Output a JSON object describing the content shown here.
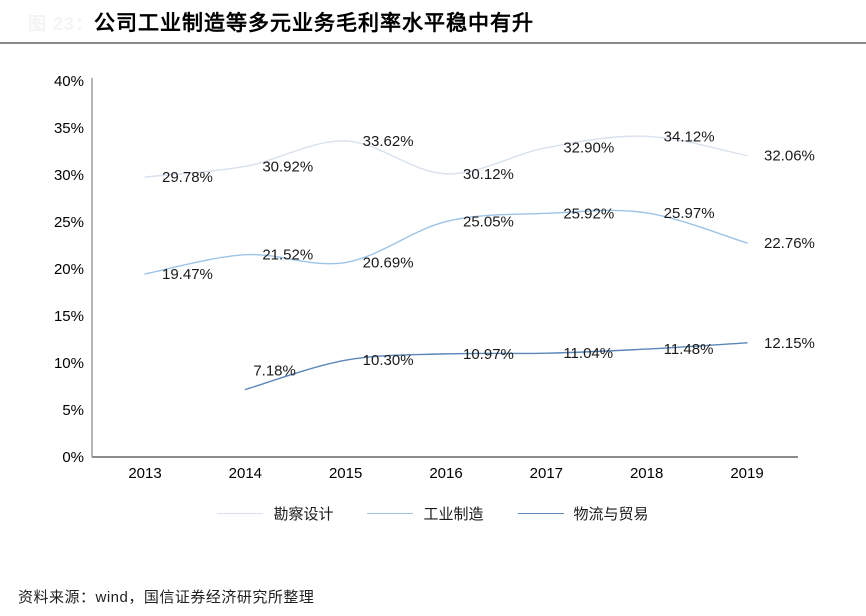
{
  "figure_label": "图 23：",
  "title": "公司工业制造等多元业务毛利率水平稳中有升",
  "source_note": "资料来源：wind，国信证券经济研究所整理",
  "colors": {
    "series1": "#d9e1ed",
    "series2": "#9dc3e6",
    "series3": "#5b87b8",
    "axis": "#9b9b9b",
    "title_underline": "#8a8a8a",
    "label_text": "#1a1a1a"
  },
  "chart_data": {
    "type": "line",
    "title": "公司工业制造等多元业务毛利率水平稳中有升",
    "x": [
      "2013",
      "2014",
      "2015",
      "2016",
      "2017",
      "2018",
      "2019"
    ],
    "series": [
      {
        "name": "勘察设计",
        "color": "#d9e1ed",
        "values": [
          29.78,
          30.92,
          33.62,
          30.12,
          32.9,
          34.12,
          32.06
        ],
        "labels": [
          "29.78%",
          "30.92%",
          "33.62%",
          "30.12%",
          "32.90%",
          "34.12%",
          "32.06%"
        ]
      },
      {
        "name": "工业制造",
        "color": "#9dc3e6",
        "values": [
          19.47,
          21.52,
          20.69,
          25.05,
          25.92,
          25.97,
          22.76
        ],
        "labels": [
          "19.47%",
          "21.52%",
          "20.69%",
          "25.05%",
          "25.92%",
          "25.97%",
          "22.76%"
        ]
      },
      {
        "name": "物流与贸易",
        "color": "#5b87b8",
        "values": [
          null,
          7.18,
          10.3,
          10.97,
          11.04,
          11.48,
          12.15
        ],
        "labels": [
          null,
          "7.18%",
          "10.30%",
          "10.97%",
          "11.04%",
          "11.48%",
          "12.15%"
        ]
      }
    ],
    "ylim": [
      0,
      40
    ],
    "ytick_step": 5,
    "ytick_labels": [
      "0%",
      "5%",
      "10%",
      "15%",
      "20%",
      "25%",
      "30%",
      "35%",
      "40%"
    ],
    "grid": false,
    "legend_position": "bottom",
    "curve": "smooth"
  }
}
